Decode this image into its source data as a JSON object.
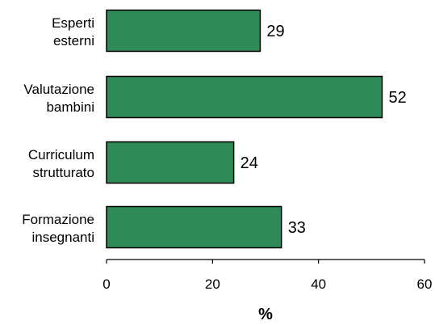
{
  "chart_data": {
    "type": "bar",
    "orientation": "horizontal",
    "categories": [
      [
        "Esperti",
        "esterni"
      ],
      [
        "Valutazione",
        "bambini"
      ],
      [
        "Curriculum",
        "strutturato"
      ],
      [
        "Formazione",
        "insegnanti"
      ]
    ],
    "values": [
      29,
      52,
      24,
      33
    ],
    "value_labels": [
      "29",
      "52",
      "24",
      "33"
    ],
    "title": "",
    "xlabel": "%",
    "ylabel": "",
    "xlim": [
      0,
      60
    ],
    "xticks": [
      0,
      20,
      40,
      60
    ],
    "xtick_labels": [
      "0",
      "20",
      "40",
      "60"
    ],
    "grid": false,
    "legend": "none",
    "bar_color": "#2e8b57",
    "bar_edge_color": "#000000"
  }
}
